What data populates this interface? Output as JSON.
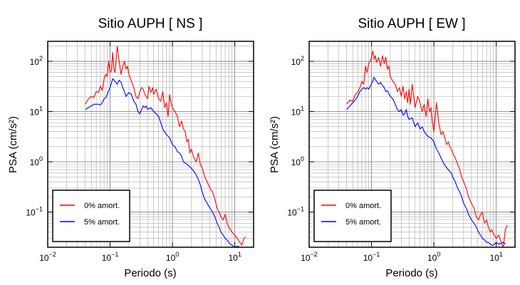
{
  "chart_data": [
    {
      "type": "line",
      "title": "Sitio AUPH [ NS ]",
      "xlabel": "Periodo (s)",
      "ylabel": "PSA (cm/s²)",
      "xscale": "log",
      "yscale": "log",
      "xlim": [
        0.01,
        20
      ],
      "ylim": [
        0.02,
        250
      ],
      "grid": true,
      "legend_position": "bottom-left",
      "x_ticks": [
        {
          "value": 0.01,
          "base": "10",
          "exp": "−2"
        },
        {
          "value": 0.1,
          "base": "10",
          "exp": "−1"
        },
        {
          "value": 1,
          "base": "10",
          "exp": "0"
        },
        {
          "value": 10,
          "base": "10",
          "exp": "1"
        }
      ],
      "y_ticks": [
        {
          "value": 0.1,
          "base": "10",
          "exp": "−1"
        },
        {
          "value": 1,
          "base": "10",
          "exp": "0"
        },
        {
          "value": 10,
          "base": "10",
          "exp": "1"
        },
        {
          "value": 100,
          "base": "10",
          "exp": "2"
        }
      ],
      "series": [
        {
          "name": "0% amort.",
          "color": "#ff0000",
          "x": [
            0.04,
            0.045,
            0.05,
            0.055,
            0.06,
            0.065,
            0.07,
            0.075,
            0.08,
            0.085,
            0.09,
            0.095,
            0.1,
            0.105,
            0.11,
            0.115,
            0.12,
            0.13,
            0.14,
            0.15,
            0.16,
            0.17,
            0.18,
            0.19,
            0.2,
            0.22,
            0.24,
            0.26,
            0.28,
            0.3,
            0.32,
            0.34,
            0.36,
            0.38,
            0.4,
            0.42,
            0.45,
            0.48,
            0.5,
            0.55,
            0.6,
            0.65,
            0.7,
            0.75,
            0.8,
            0.85,
            0.9,
            0.95,
            1.0,
            1.1,
            1.2,
            1.3,
            1.4,
            1.5,
            1.6,
            1.7,
            1.8,
            1.9,
            2.0,
            2.2,
            2.4,
            2.6,
            2.8,
            3.0,
            3.3,
            3.6,
            4.0,
            4.4,
            4.8,
            5.2,
            5.6,
            6.0,
            6.5,
            7.0,
            7.5,
            8.0,
            8.5,
            9.0,
            10.0,
            11.0,
            12.0,
            13.0,
            14.0,
            15.0
          ],
          "y": [
            14,
            18,
            20,
            19,
            25,
            24,
            32,
            26,
            45,
            55,
            50,
            100,
            60,
            65,
            150,
            70,
            60,
            200,
            100,
            55,
            80,
            100,
            70,
            80,
            55,
            40,
            30,
            20,
            18,
            25,
            30,
            28,
            22,
            20,
            18,
            32,
            24,
            30,
            22,
            28,
            18,
            16,
            25,
            12,
            15,
            8,
            22,
            15,
            12,
            10,
            8,
            5,
            6.5,
            4.5,
            4,
            2.5,
            2.8,
            1.5,
            1.8,
            1.2,
            1.0,
            1.5,
            0.9,
            0.75,
            0.5,
            0.4,
            0.3,
            0.25,
            0.18,
            0.12,
            0.1,
            0.08,
            0.07,
            0.09,
            0.06,
            0.05,
            0.045,
            0.04,
            0.035,
            0.03,
            0.025,
            0.022,
            0.03,
            0.032
          ]
        },
        {
          "name": "5% amort.",
          "color": "#0000ff",
          "x": [
            0.04,
            0.045,
            0.05,
            0.055,
            0.06,
            0.065,
            0.07,
            0.075,
            0.08,
            0.085,
            0.09,
            0.1,
            0.11,
            0.12,
            0.13,
            0.14,
            0.15,
            0.16,
            0.17,
            0.18,
            0.2,
            0.22,
            0.24,
            0.26,
            0.28,
            0.3,
            0.32,
            0.34,
            0.36,
            0.38,
            0.4,
            0.45,
            0.5,
            0.55,
            0.6,
            0.65,
            0.7,
            0.8,
            0.9,
            1.0,
            1.1,
            1.2,
            1.3,
            1.4,
            1.5,
            1.7,
            1.9,
            2.0,
            2.2,
            2.4,
            2.6,
            2.8,
            3.0,
            3.3,
            3.6,
            4.0,
            4.4,
            4.8,
            5.2,
            5.6,
            6.0,
            6.5,
            7.0,
            7.5,
            8.0,
            8.5,
            9.0,
            10.0,
            11.0,
            12.0
          ],
          "y": [
            11,
            12,
            13,
            14,
            14,
            14,
            13.5,
            15,
            18,
            19,
            22,
            30,
            45,
            40,
            35,
            42,
            38,
            30,
            25,
            20,
            24,
            22,
            16,
            14,
            10,
            9,
            11,
            13,
            12,
            13,
            11,
            12,
            10,
            9,
            8,
            6,
            4.5,
            3.5,
            3,
            2.2,
            2.0,
            1.6,
            1.5,
            1.3,
            1.0,
            0.9,
            0.8,
            0.75,
            0.65,
            0.55,
            0.45,
            0.35,
            0.25,
            0.18,
            0.15,
            0.12,
            0.1,
            0.08,
            0.06,
            0.05,
            0.04,
            0.035,
            0.03,
            0.028,
            0.025,
            0.023,
            0.022,
            0.02,
            0.021,
            0.02
          ]
        }
      ]
    },
    {
      "type": "line",
      "title": "Sitio AUPH [ EW ]",
      "xlabel": "Periodo (s)",
      "ylabel": "PSA (cm/s²)",
      "xscale": "log",
      "yscale": "log",
      "xlim": [
        0.01,
        20
      ],
      "ylim": [
        0.02,
        250
      ],
      "grid": true,
      "legend_position": "bottom-left",
      "x_ticks": [
        {
          "value": 0.01,
          "base": "10",
          "exp": "−2"
        },
        {
          "value": 0.1,
          "base": "10",
          "exp": "−1"
        },
        {
          "value": 1,
          "base": "10",
          "exp": "0"
        },
        {
          "value": 10,
          "base": "10",
          "exp": "1"
        }
      ],
      "y_ticks": [
        {
          "value": 0.1,
          "base": "10",
          "exp": "−1"
        },
        {
          "value": 1,
          "base": "10",
          "exp": "0"
        },
        {
          "value": 10,
          "base": "10",
          "exp": "1"
        },
        {
          "value": 100,
          "base": "10",
          "exp": "2"
        }
      ],
      "series": [
        {
          "name": "0% amort.",
          "color": "#ff0000",
          "x": [
            0.04,
            0.045,
            0.05,
            0.055,
            0.06,
            0.065,
            0.07,
            0.075,
            0.08,
            0.085,
            0.09,
            0.095,
            0.1,
            0.105,
            0.11,
            0.115,
            0.12,
            0.13,
            0.14,
            0.15,
            0.16,
            0.17,
            0.18,
            0.19,
            0.2,
            0.22,
            0.24,
            0.26,
            0.28,
            0.3,
            0.32,
            0.34,
            0.36,
            0.38,
            0.4,
            0.42,
            0.45,
            0.48,
            0.5,
            0.55,
            0.6,
            0.65,
            0.7,
            0.75,
            0.8,
            0.85,
            0.9,
            0.95,
            1.0,
            1.1,
            1.2,
            1.3,
            1.4,
            1.5,
            1.6,
            1.7,
            1.8,
            1.9,
            2.0,
            2.2,
            2.4,
            2.6,
            2.8,
            3.0,
            3.3,
            3.6,
            4.0,
            4.4,
            4.8,
            5.2,
            5.6,
            6.0,
            6.5,
            7.0,
            7.5,
            8.0,
            8.5,
            9.0,
            10.0,
            11.0,
            12.0,
            13.0,
            14.0,
            15.0
          ],
          "y": [
            14,
            17,
            16,
            22,
            24,
            30,
            40,
            35,
            80,
            60,
            90,
            100,
            120,
            160,
            110,
            130,
            95,
            120,
            80,
            130,
            90,
            120,
            70,
            80,
            50,
            40,
            35,
            25,
            30,
            20,
            32,
            18,
            25,
            15,
            28,
            14,
            35,
            18,
            12,
            20,
            15,
            10,
            14,
            8,
            18,
            10,
            12,
            6,
            4,
            15,
            6,
            3.5,
            4,
            3,
            2.2,
            2.5,
            2.0,
            1.8,
            1.5,
            1.2,
            0.9,
            0.7,
            0.5,
            0.4,
            0.3,
            0.2,
            0.15,
            0.12,
            0.08,
            0.07,
            0.09,
            0.1,
            0.06,
            0.07,
            0.05,
            0.04,
            0.045,
            0.038,
            0.03,
            0.035,
            0.025,
            0.02,
            0.045,
            0.055
          ]
        },
        {
          "name": "5% amort.",
          "color": "#0000ff",
          "x": [
            0.04,
            0.045,
            0.05,
            0.055,
            0.06,
            0.065,
            0.07,
            0.075,
            0.08,
            0.085,
            0.09,
            0.1,
            0.11,
            0.12,
            0.13,
            0.14,
            0.15,
            0.16,
            0.17,
            0.18,
            0.2,
            0.22,
            0.24,
            0.26,
            0.28,
            0.3,
            0.32,
            0.34,
            0.36,
            0.38,
            0.4,
            0.45,
            0.5,
            0.55,
            0.6,
            0.65,
            0.7,
            0.8,
            0.9,
            1.0,
            1.1,
            1.2,
            1.3,
            1.4,
            1.5,
            1.7,
            1.9,
            2.0,
            2.2,
            2.4,
            2.6,
            2.8,
            3.0,
            3.3,
            3.6,
            4.0,
            4.4,
            4.8,
            5.2,
            5.6,
            6.0,
            6.5,
            7.0,
            7.5,
            8.0,
            8.5,
            9.0,
            10.0,
            11.0,
            12.0,
            13.0,
            14.0
          ],
          "y": [
            11,
            13,
            15,
            17,
            20,
            25,
            28,
            30,
            28,
            30,
            28,
            35,
            48,
            40,
            35,
            38,
            33,
            30,
            25,
            26,
            20,
            18,
            14,
            11,
            10,
            11,
            8.5,
            9,
            11,
            8,
            7,
            7.5,
            5,
            6,
            4.5,
            5,
            4,
            3.2,
            3.0,
            2.5,
            1.8,
            1.5,
            1.2,
            1.0,
            0.85,
            0.7,
            0.6,
            0.5,
            0.4,
            0.3,
            0.25,
            0.2,
            0.15,
            0.12,
            0.09,
            0.07,
            0.06,
            0.05,
            0.04,
            0.035,
            0.03,
            0.028,
            0.025,
            0.025,
            0.023,
            0.022,
            0.022,
            0.025,
            0.023,
            0.024,
            0.025,
            0.023
          ]
        }
      ]
    }
  ]
}
